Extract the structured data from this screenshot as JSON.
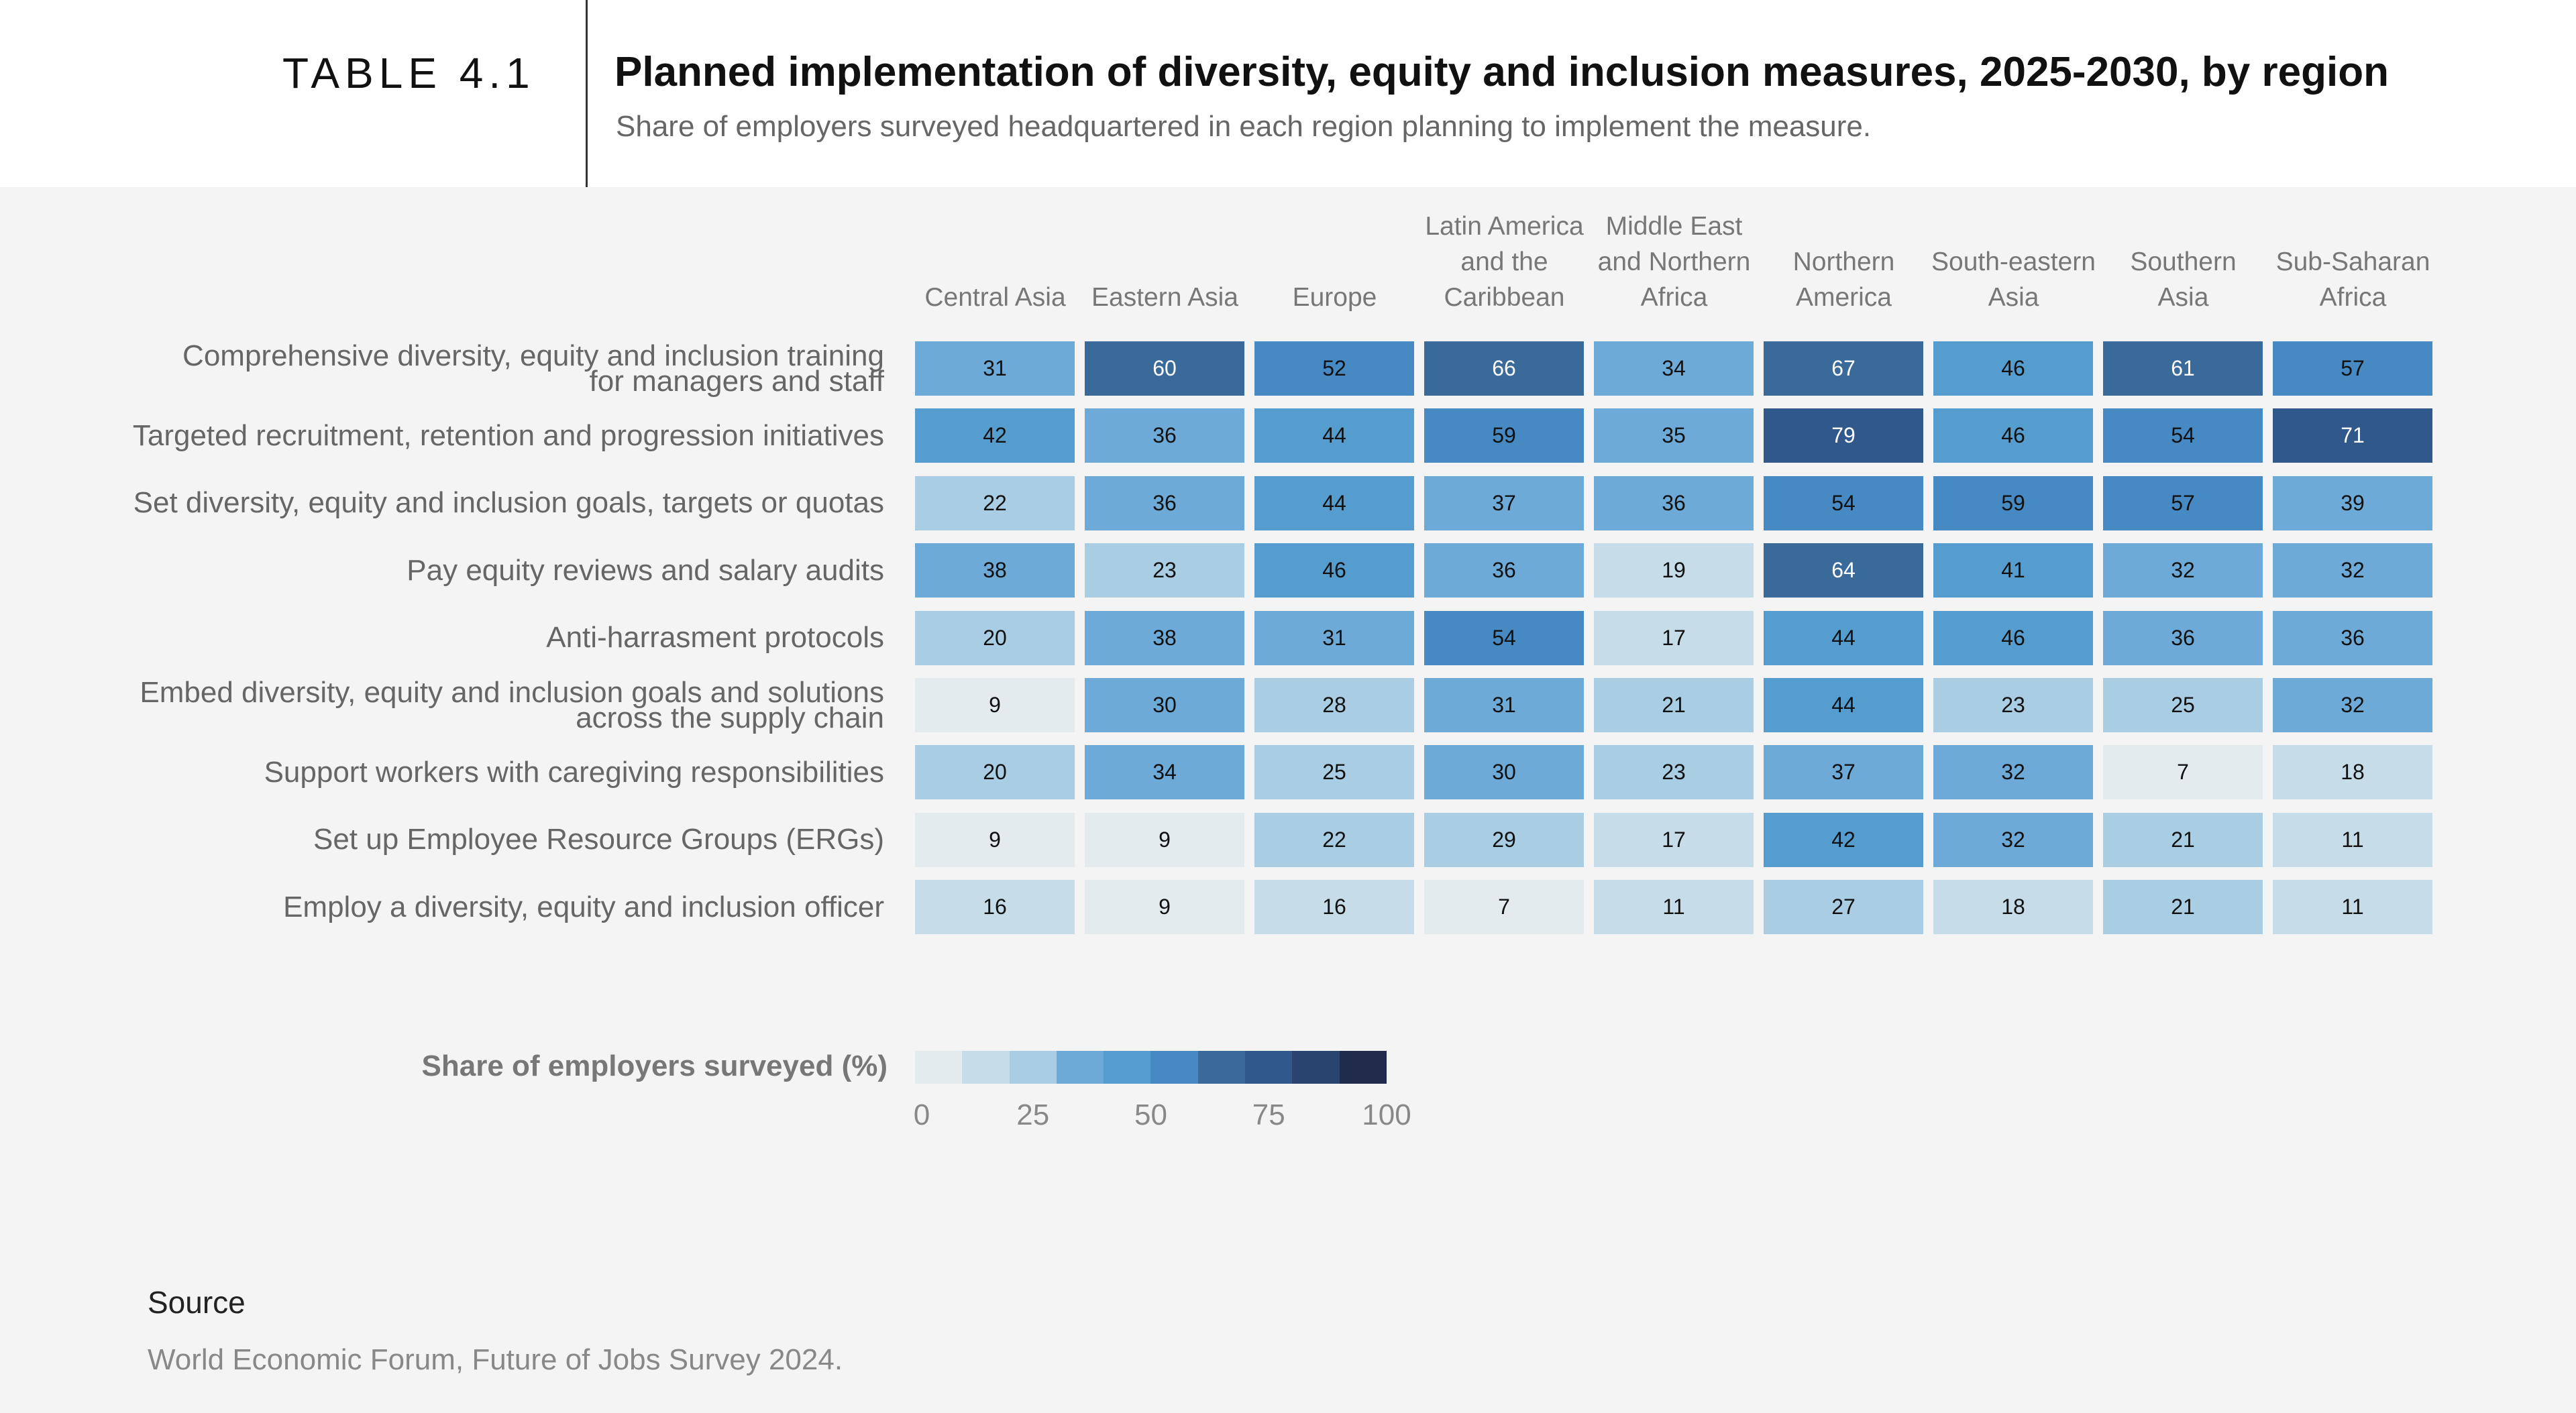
{
  "header": {
    "table_number": "TABLE 4.1",
    "title": "Planned implementation of diversity, equity and inclusion measures, 2025-2030, by region",
    "subtitle": "Share of employers surveyed headquartered in each region planning to implement the measure."
  },
  "chart_data": {
    "type": "heatmap",
    "title": "Planned implementation of diversity, equity and inclusion measures, 2025-2030, by region",
    "columns": [
      "Central Asia",
      "Eastern Asia",
      "Europe",
      "Latin America\nand the\nCaribbean",
      "Middle East\nand Northern\nAfrica",
      "Northern\nAmerica",
      "South-eastern\nAsia",
      "Southern\nAsia",
      "Sub-Saharan\nAfrica"
    ],
    "rows": [
      "Comprehensive diversity, equity and inclusion training\nfor  managers and staff",
      "Targeted recruitment, retention and progression initiatives",
      "Set diversity, equity and inclusion goals, targets or quotas",
      "Pay equity reviews and salary audits",
      "Anti-harrasment protocols",
      "Embed diversity, equity and inclusion goals and solutions\nacross the supply chain",
      "Support workers with caregiving responsibilities",
      "Set up Employee Resource Groups (ERGs)",
      "Employ a diversity, equity and inclusion officer"
    ],
    "values": [
      [
        31,
        60,
        52,
        66,
        34,
        67,
        46,
        61,
        57
      ],
      [
        42,
        36,
        44,
        59,
        35,
        79,
        46,
        54,
        71
      ],
      [
        22,
        36,
        44,
        37,
        36,
        54,
        59,
        57,
        39
      ],
      [
        38,
        23,
        46,
        36,
        19,
        64,
        41,
        32,
        32
      ],
      [
        20,
        38,
        31,
        54,
        17,
        44,
        46,
        36,
        36
      ],
      [
        9,
        30,
        28,
        31,
        21,
        44,
        23,
        25,
        32
      ],
      [
        20,
        34,
        25,
        30,
        23,
        37,
        32,
        7,
        18
      ],
      [
        9,
        9,
        22,
        29,
        17,
        42,
        32,
        21,
        11
      ],
      [
        16,
        9,
        16,
        7,
        11,
        27,
        18,
        21,
        11
      ]
    ],
    "legend": {
      "label": "Share of employers surveyed (%)",
      "range": [
        0,
        100
      ],
      "ticks": [
        "0",
        "25",
        "50",
        "75",
        "100"
      ],
      "colors": [
        "#e3ebef",
        "#c6dce8",
        "#a9cde2",
        "#6eaad8",
        "#559ccf",
        "#4789c2",
        "#3a6a9a",
        "#30588a",
        "#2a4470",
        "#212b4a"
      ]
    }
  },
  "source": {
    "heading": "Source",
    "text": "World Economic Forum, Future of Jobs Survey 2024."
  }
}
